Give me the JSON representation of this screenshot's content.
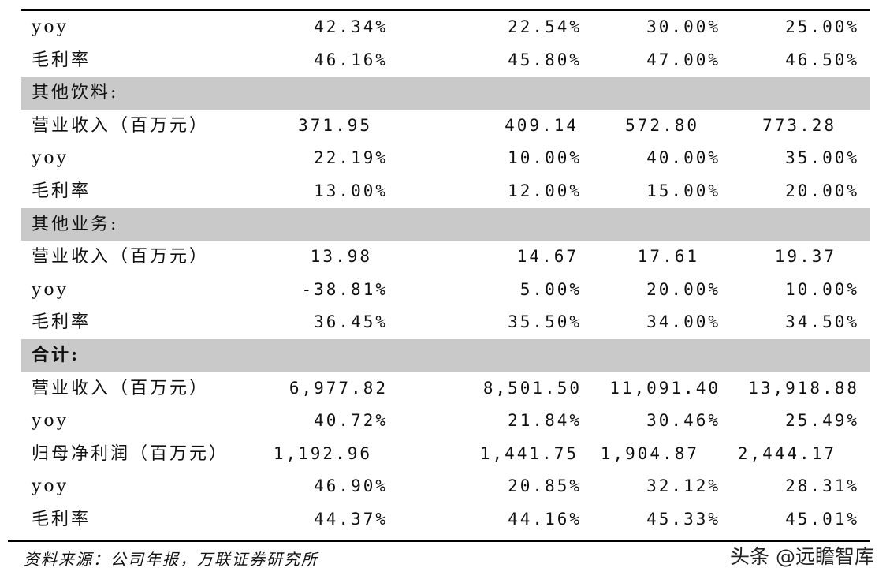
{
  "rows": [
    {
      "type": "data",
      "label": "yoy",
      "values": [
        "42.34%",
        "22.54%",
        "30.00%",
        "25.00%"
      ],
      "align": "right"
    },
    {
      "type": "data",
      "label": "毛利率",
      "values": [
        "46.16%",
        "45.80%",
        "47.00%",
        "46.50%"
      ],
      "align": "right"
    },
    {
      "type": "section",
      "label": "其他饮料:",
      "bold": false
    },
    {
      "type": "data",
      "label": "营业收入（百万元）",
      "values": [
        "371.95",
        "409.14",
        "572.80",
        "773.28"
      ],
      "align": "left"
    },
    {
      "type": "data",
      "label": "yoy",
      "values": [
        "22.19%",
        "10.00%",
        "40.00%",
        "35.00%"
      ],
      "align": "right"
    },
    {
      "type": "data",
      "label": "毛利率",
      "values": [
        "13.00%",
        "12.00%",
        "15.00%",
        "20.00%"
      ],
      "align": "right"
    },
    {
      "type": "section",
      "label": "其他业务:",
      "bold": false
    },
    {
      "type": "data",
      "label": "营业收入（百万元）",
      "values": [
        "13.98",
        "14.67",
        "17.61",
        "19.37"
      ],
      "align": "left"
    },
    {
      "type": "data",
      "label": "yoy",
      "values": [
        "-38.81%",
        "5.00%",
        "20.00%",
        "10.00%"
      ],
      "align": "right"
    },
    {
      "type": "data",
      "label": "毛利率",
      "values": [
        "36.45%",
        "35.50%",
        "34.00%",
        "34.50%"
      ],
      "align": "right"
    },
    {
      "type": "section",
      "label": "合计:",
      "bold": true
    },
    {
      "type": "data",
      "label": "营业收入（百万元）",
      "values": [
        "6,977.82",
        "8,501.50",
        "11,091.40",
        "13,918.88"
      ],
      "align": "right"
    },
    {
      "type": "data",
      "label": "yoy",
      "values": [
        "40.72%",
        "21.84%",
        "30.46%",
        "25.49%"
      ],
      "align": "right"
    },
    {
      "type": "data",
      "label": "归母净利润（百万元）",
      "values": [
        "1,192.96",
        "1,441.75",
        "1,904.87",
        "2,444.17"
      ],
      "align": "left"
    },
    {
      "type": "data",
      "label": "yoy",
      "values": [
        "46.90%",
        "20.85%",
        "32.12%",
        "28.31%"
      ],
      "align": "right"
    },
    {
      "type": "data",
      "label": "毛利率",
      "values": [
        "44.37%",
        "44.16%",
        "45.33%",
        "45.01%"
      ],
      "align": "right"
    }
  ],
  "footer": {
    "source": "资料来源：公司年报，万联证券研究所"
  },
  "watermark": {
    "text": "头条 @远瞻智库"
  }
}
